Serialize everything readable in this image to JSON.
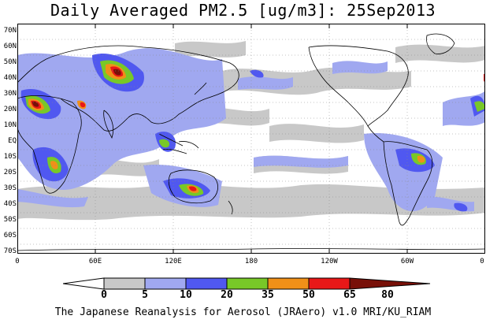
{
  "title": "Daily Averaged PM2.5 [ug/m3]: 25Sep2013",
  "credit": "The Japanese Reanalysis for Aerosol (JRAero) v1.0 MRI/KU_RIAM",
  "lat_labels": [
    "70N",
    "60N",
    "50N",
    "40N",
    "30N",
    "20N",
    "10N",
    "EQ",
    "10S",
    "20S",
    "30S",
    "40S",
    "50S",
    "60S",
    "70S"
  ],
  "lon_labels": [
    "0",
    "60E",
    "120E",
    "180",
    "120W",
    "60W",
    "0"
  ],
  "colorbar": {
    "ticks": [
      "0",
      "5",
      "10",
      "20",
      "35",
      "50",
      "65",
      "80"
    ],
    "colors": [
      "#ffffff",
      "#c8c8c8",
      "#a0a8f0",
      "#5058f0",
      "#78c828",
      "#f09018",
      "#e81818",
      "#781008"
    ]
  },
  "colors": {
    "light_gray": "#c8c8c8",
    "light_blue": "#a0a8f0",
    "blue": "#5058f0",
    "green": "#78c828",
    "orange": "#f09018",
    "red": "#e81818",
    "maroon": "#781008",
    "coastline": "#000000"
  }
}
